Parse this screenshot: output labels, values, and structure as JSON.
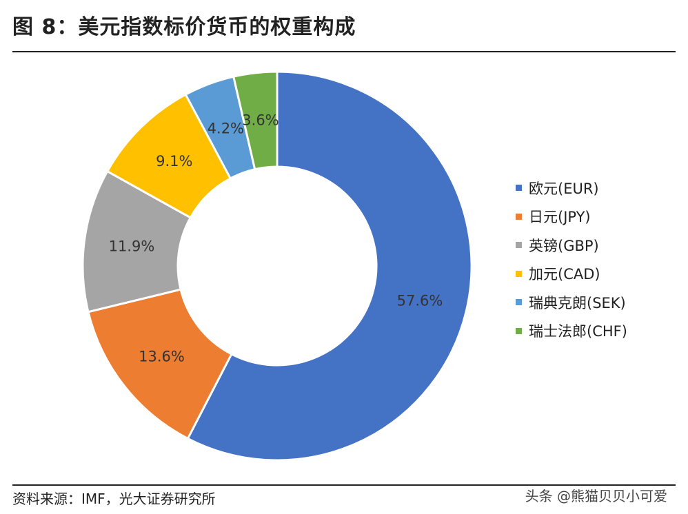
{
  "header": {
    "title": "图 8：美元指数标价货币的权重构成"
  },
  "footer": {
    "source": "资料来源：IMF，光大证券研究所",
    "watermark": "头条 @熊猫贝贝小可爱"
  },
  "chart_data": {
    "type": "pie",
    "donut": true,
    "title": "",
    "legend_position": "right",
    "categories": [
      "欧元(EUR)",
      "日元(JPY)",
      "英镑(GBP)",
      "加元(CAD)",
      "瑞典克朗(SEK)",
      "瑞士法郎(CHF)"
    ],
    "values": [
      57.6,
      13.6,
      11.9,
      9.1,
      4.2,
      3.6
    ],
    "labels": [
      "57.6%",
      "13.6%",
      "11.9%",
      "9.1%",
      "4.2%",
      "3.6%"
    ],
    "colors": [
      "#4472C4",
      "#ED7D31",
      "#A5A5A5",
      "#FFC000",
      "#5B9BD5",
      "#70AD47"
    ]
  }
}
